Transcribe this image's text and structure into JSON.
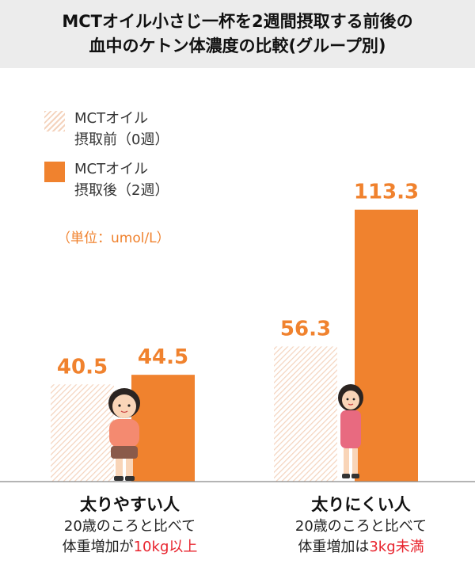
{
  "title": {
    "line1": "MCTオイル小さじ一杯を2週間摂取する前後の",
    "line2": "血中のケトン体濃度の比較(グループ別)"
  },
  "legend": {
    "before": {
      "line1": "MCTオイル",
      "line2": "摂取前（0週）"
    },
    "after": {
      "line1": "MCTオイル",
      "line2": "摂取後（2週）"
    }
  },
  "unit_label": "（単位：umol/L）",
  "groups": [
    {
      "title": "太りやすい人",
      "sub1": "20歳のころと比べて",
      "sub2_prefix": "体重増加が",
      "sub2_highlight": "10kg以上"
    },
    {
      "title": "太りにくい人",
      "sub1": "20歳のころと比べて",
      "sub2_prefix": "体重増加は",
      "sub2_highlight": "3kg未満"
    }
  ],
  "colors": {
    "after": "#f0822e",
    "before_hatch": "#f4d3bd",
    "value_label": "#f0822e",
    "highlight": "#e8242e",
    "title_band": "#ececec"
  },
  "chart_data": {
    "type": "bar",
    "title": "MCTオイル小さじ一杯を2週間摂取する前後の血中のケトン体濃度の比較(グループ別)",
    "categories": [
      "太りやすい人",
      "太りにくい人"
    ],
    "series": [
      {
        "name": "MCTオイル摂取前（0週）",
        "values": [
          40.5,
          56.3
        ]
      },
      {
        "name": "MCTオイル摂取後（2週）",
        "values": [
          44.5,
          113.3
        ]
      }
    ],
    "value_labels": [
      "40.5",
      "44.5",
      "56.3",
      "113.3"
    ],
    "ylim": [
      0,
      120
    ],
    "grid": false,
    "legend_position": "top-left"
  }
}
